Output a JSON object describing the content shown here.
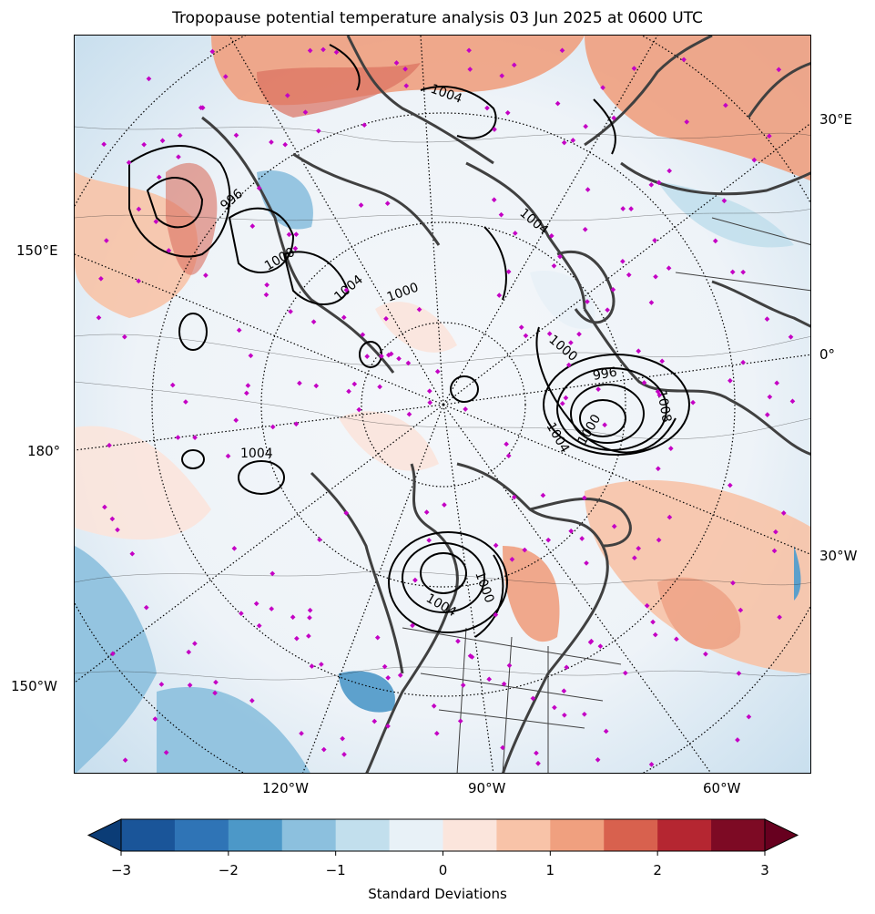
{
  "title": "Tropopause potential temperature analysis 03 Jun 2025 at 0600 UTC",
  "map": {
    "projection": "north polar stereographic",
    "fill_field": "tropopause potential temperature anomaly",
    "contours": "mean sea level pressure",
    "station_marker_color": "#c400c4",
    "coastline_color": "#404040"
  },
  "left_lon_labels": [
    "150°E",
    "180°",
    "150°W"
  ],
  "right_lon_labels": [
    "30°E",
    "0°",
    "30°W"
  ],
  "bottom_lon_labels": [
    "120°W",
    "90°W",
    "60°W"
  ],
  "contour_labels": [
    "1004",
    "1004",
    "1000",
    "996",
    "1004",
    "1000",
    "996",
    "1004",
    "1008",
    "1000",
    "1004",
    "1000",
    "1004",
    "1000"
  ],
  "colorbar": {
    "label": "Standard Deviations",
    "ticks": [
      "−3",
      "−2",
      "−1",
      "0",
      "1",
      "2",
      "3"
    ],
    "range": [
      -3,
      3
    ],
    "colors": [
      "#0b3c76",
      "#1a5599",
      "#2f74b6",
      "#4c98c8",
      "#8cc0de",
      "#c2dfed",
      "#e8f1f7",
      "#fbe5dc",
      "#f8c3a8",
      "#f0a07f",
      "#d8614e",
      "#b52631",
      "#7d0a24",
      "#67001f"
    ],
    "extend": "both"
  }
}
